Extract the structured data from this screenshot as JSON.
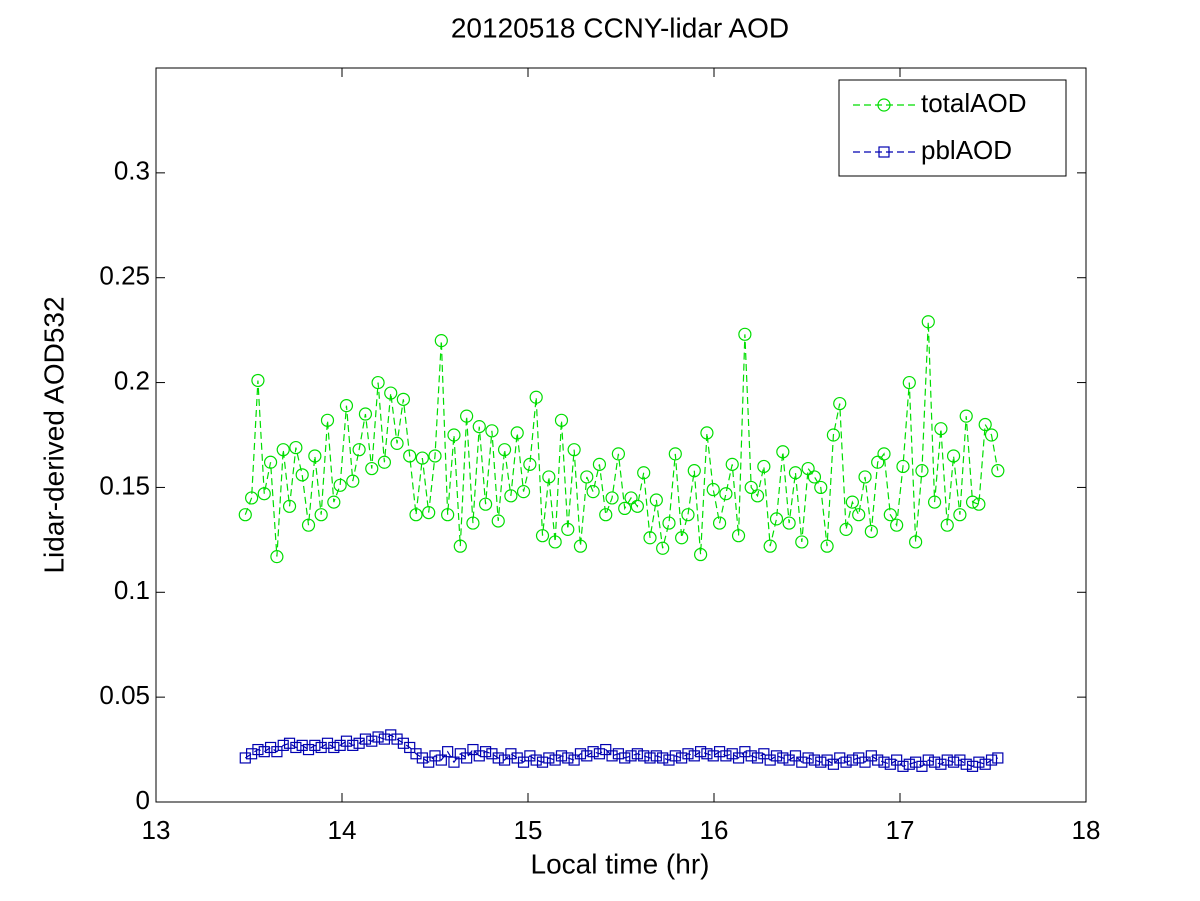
{
  "chart_data": {
    "type": "line",
    "title": "20120518 CCNY-lidar AOD",
    "x_label": "Local time (hr)",
    "y_label": "Lidar-derived AOD532",
    "xlim": [
      13,
      18
    ],
    "xticks": [
      13,
      14,
      15,
      16,
      17,
      18
    ],
    "ylim": [
      0,
      0.35
    ],
    "yticks": [
      0,
      0.05,
      0.1,
      0.15,
      0.2,
      0.25,
      0.3
    ],
    "grid": false,
    "legend_position": "northeast",
    "x": [
      13.48,
      13.514,
      13.548,
      13.582,
      13.616,
      13.65,
      13.684,
      13.718,
      13.752,
      13.786,
      13.82,
      13.854,
      13.888,
      13.922,
      13.956,
      13.99,
      14.024,
      14.058,
      14.092,
      14.126,
      14.16,
      14.194,
      14.228,
      14.262,
      14.296,
      14.33,
      14.364,
      14.398,
      14.432,
      14.466,
      14.5,
      14.534,
      14.568,
      14.602,
      14.636,
      14.67,
      14.704,
      14.738,
      14.772,
      14.806,
      14.84,
      14.874,
      14.908,
      14.942,
      14.976,
      15.01,
      15.044,
      15.078,
      15.112,
      15.146,
      15.18,
      15.214,
      15.248,
      15.282,
      15.316,
      15.35,
      15.384,
      15.418,
      15.452,
      15.486,
      15.52,
      15.554,
      15.588,
      15.622,
      15.656,
      15.69,
      15.724,
      15.758,
      15.792,
      15.826,
      15.86,
      15.894,
      15.928,
      15.962,
      15.996,
      16.03,
      16.064,
      16.098,
      16.132,
      16.166,
      16.2,
      16.234,
      16.268,
      16.302,
      16.336,
      16.37,
      16.404,
      16.438,
      16.472,
      16.506,
      16.54,
      16.574,
      16.608,
      16.642,
      16.676,
      16.71,
      16.744,
      16.778,
      16.812,
      16.846,
      16.88,
      16.914,
      16.948,
      16.982,
      17.016,
      17.05,
      17.084,
      17.118,
      17.152,
      17.186,
      17.22,
      17.254,
      17.288,
      17.322,
      17.356,
      17.39,
      17.424,
      17.458,
      17.492,
      17.526
    ],
    "series": [
      {
        "name": "totalAOD",
        "color": "#00dd00",
        "marker": "circle",
        "values": [
          0.137,
          0.145,
          0.201,
          0.147,
          0.162,
          0.117,
          0.168,
          0.141,
          0.169,
          0.156,
          0.132,
          0.165,
          0.137,
          0.182,
          0.143,
          0.151,
          0.189,
          0.153,
          0.168,
          0.185,
          0.159,
          0.2,
          0.162,
          0.195,
          0.171,
          0.192,
          0.165,
          0.137,
          0.164,
          0.138,
          0.165,
          0.22,
          0.137,
          0.175,
          0.122,
          0.184,
          0.133,
          0.179,
          0.142,
          0.177,
          0.134,
          0.168,
          0.146,
          0.176,
          0.148,
          0.161,
          0.193,
          0.127,
          0.155,
          0.124,
          0.182,
          0.13,
          0.168,
          0.122,
          0.155,
          0.148,
          0.161,
          0.137,
          0.145,
          0.166,
          0.14,
          0.145,
          0.141,
          0.157,
          0.126,
          0.144,
          0.121,
          0.133,
          0.166,
          0.126,
          0.137,
          0.158,
          0.118,
          0.176,
          0.149,
          0.133,
          0.147,
          0.161,
          0.127,
          0.223,
          0.15,
          0.146,
          0.16,
          0.122,
          0.135,
          0.167,
          0.133,
          0.157,
          0.124,
          0.159,
          0.155,
          0.15,
          0.122,
          0.175,
          0.19,
          0.13,
          0.143,
          0.137,
          0.155,
          0.129,
          0.162,
          0.166,
          0.137,
          0.132,
          0.16,
          0.2,
          0.124,
          0.158,
          0.229,
          0.143,
          0.178,
          0.132,
          0.165,
          0.137,
          0.184,
          0.143,
          0.142,
          0.18,
          0.175,
          0.158
        ]
      },
      {
        "name": "pblAOD",
        "color": "#0000b0",
        "marker": "square",
        "values": [
          0.021,
          0.023,
          0.025,
          0.024,
          0.026,
          0.024,
          0.027,
          0.028,
          0.026,
          0.027,
          0.025,
          0.027,
          0.026,
          0.028,
          0.026,
          0.027,
          0.029,
          0.027,
          0.028,
          0.03,
          0.029,
          0.031,
          0.03,
          0.032,
          0.03,
          0.028,
          0.026,
          0.023,
          0.021,
          0.019,
          0.022,
          0.02,
          0.024,
          0.019,
          0.023,
          0.021,
          0.025,
          0.022,
          0.024,
          0.023,
          0.021,
          0.02,
          0.023,
          0.021,
          0.019,
          0.022,
          0.02,
          0.019,
          0.021,
          0.02,
          0.022,
          0.021,
          0.02,
          0.023,
          0.022,
          0.024,
          0.023,
          0.025,
          0.022,
          0.023,
          0.021,
          0.022,
          0.023,
          0.022,
          0.021,
          0.022,
          0.021,
          0.02,
          0.022,
          0.021,
          0.023,
          0.022,
          0.024,
          0.023,
          0.022,
          0.024,
          0.022,
          0.023,
          0.021,
          0.024,
          0.022,
          0.021,
          0.023,
          0.02,
          0.022,
          0.021,
          0.02,
          0.022,
          0.019,
          0.021,
          0.02,
          0.019,
          0.02,
          0.018,
          0.021,
          0.019,
          0.02,
          0.021,
          0.019,
          0.022,
          0.02,
          0.019,
          0.018,
          0.02,
          0.017,
          0.018,
          0.019,
          0.017,
          0.02,
          0.019,
          0.018,
          0.02,
          0.019,
          0.02,
          0.018,
          0.017,
          0.019,
          0.018,
          0.02,
          0.021
        ]
      }
    ]
  }
}
